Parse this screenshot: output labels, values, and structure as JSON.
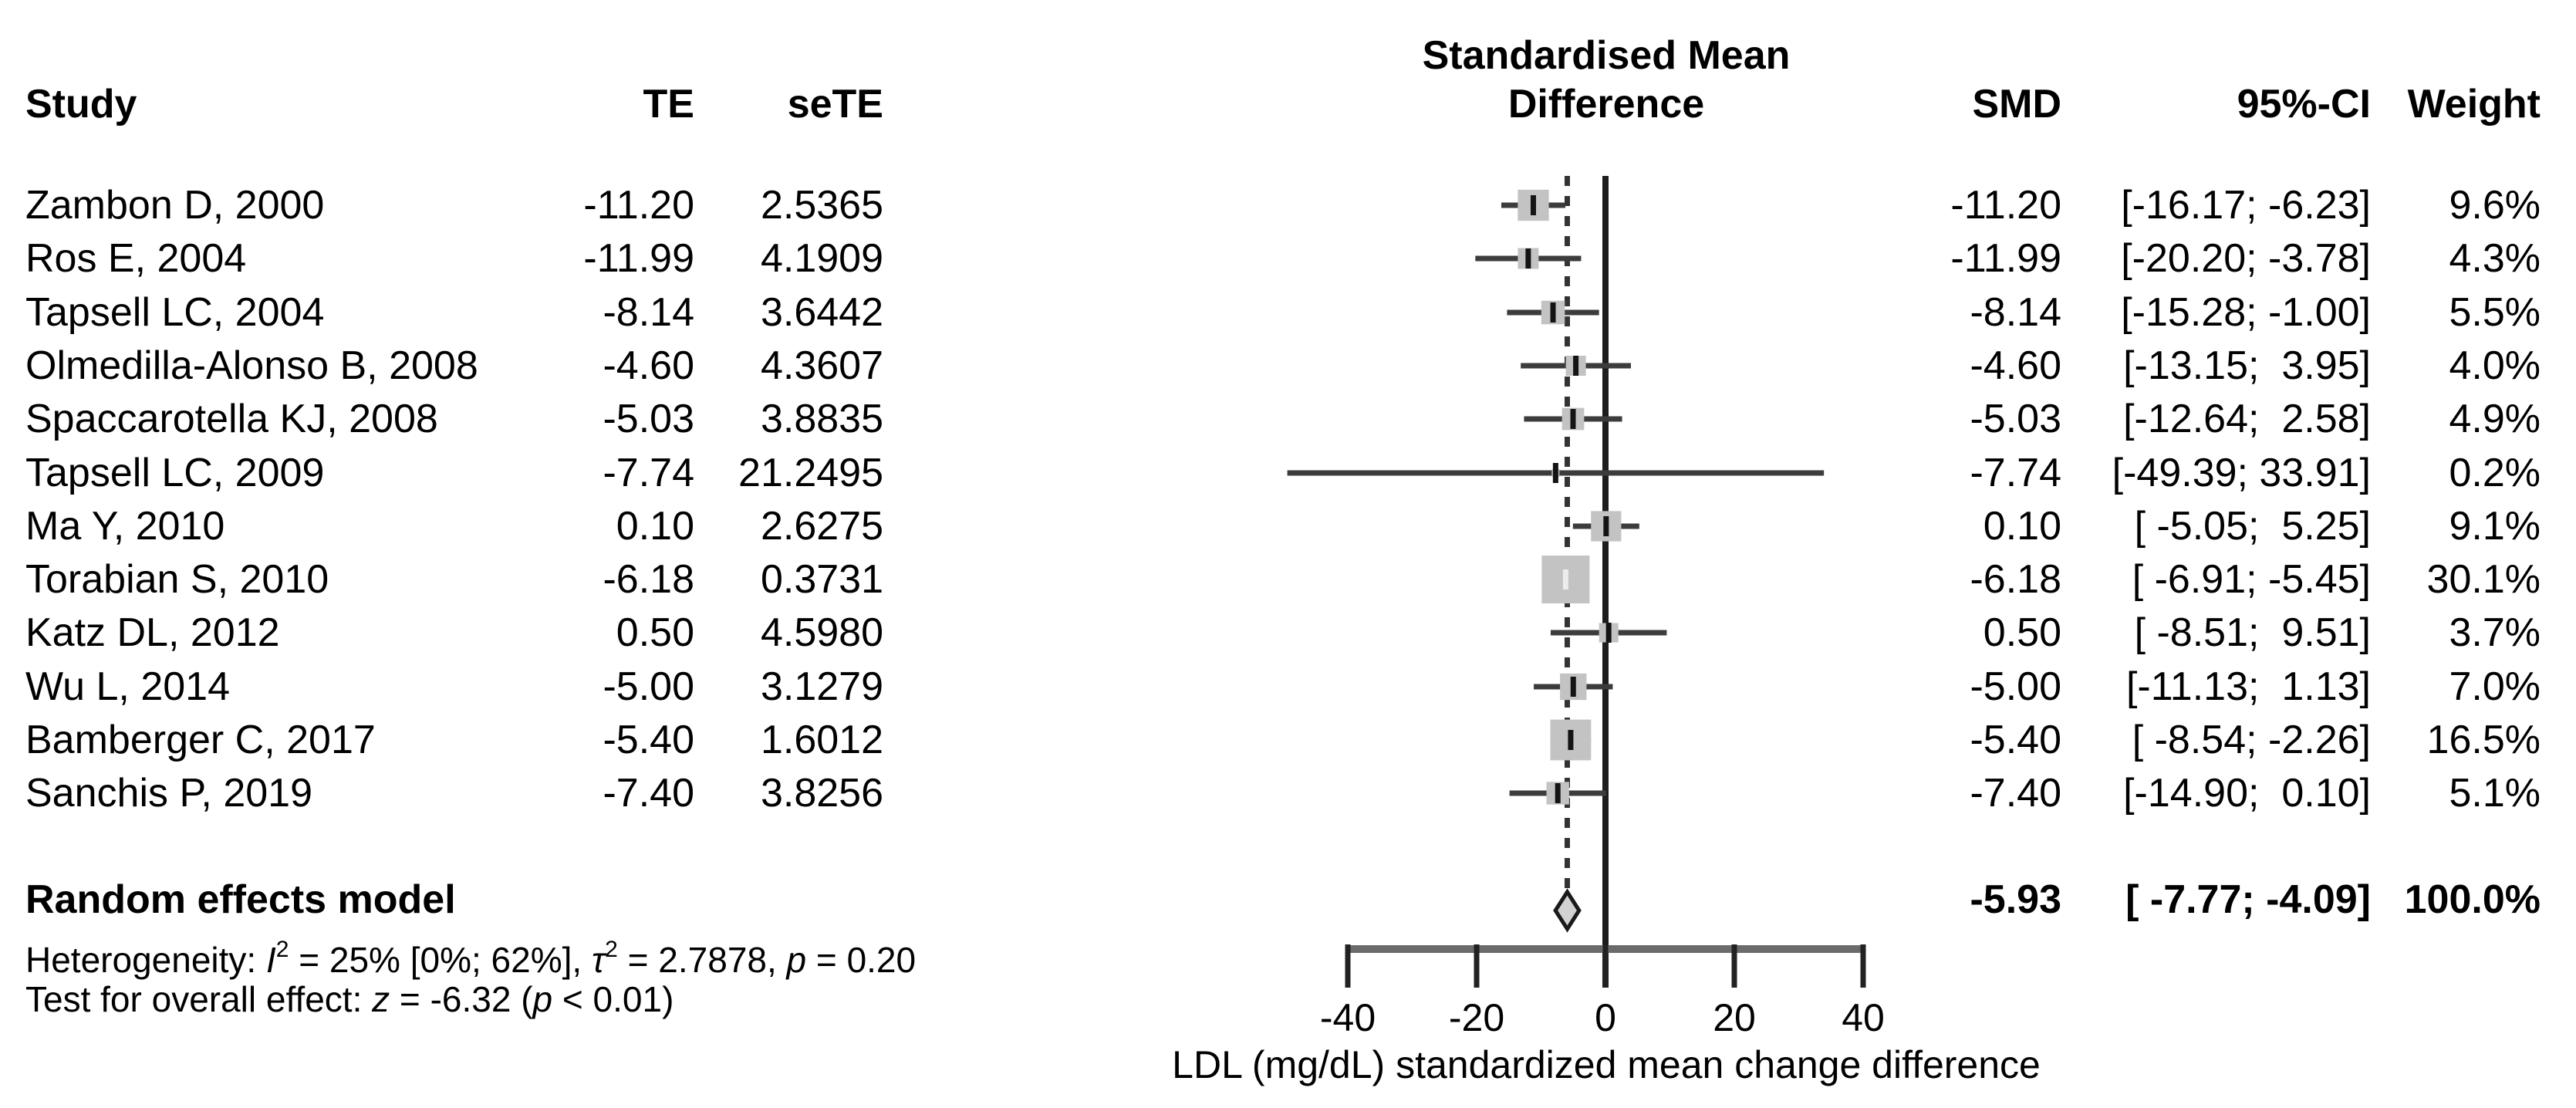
{
  "table": {
    "headers": {
      "study": "Study",
      "te": "TE",
      "sete": "seTE",
      "smd": "SMD",
      "ci": "95%-CI",
      "weight": "Weight"
    }
  },
  "plot": {
    "title_line1": "Standardised Mean",
    "title_line2": "Difference"
  },
  "chart_data": {
    "type": "forest",
    "effect_measure": "SMD",
    "x_axis": {
      "label": "LDL (mg/dL) standardized mean change difference",
      "ticks": [
        -40,
        -20,
        0,
        20,
        40
      ],
      "tick_labels": [
        "-40",
        "-20",
        "0",
        "20",
        "40"
      ],
      "range": [
        -40,
        40
      ]
    },
    "zero_line_x": 0,
    "pooled_line_x": -5.93,
    "studies": [
      {
        "study": "Zambon D, 2000",
        "te": "-11.20",
        "sete": "2.5365",
        "smd": -11.2,
        "ci_lower": -16.17,
        "ci_upper": -6.23,
        "smd_label": "-11.20",
        "ci_label": "[-16.17; -6.23]",
        "weight_pct": 9.6,
        "weight_label": "9.6%"
      },
      {
        "study": "Ros E, 2004",
        "te": "-11.99",
        "sete": "4.1909",
        "smd": -11.99,
        "ci_lower": -20.2,
        "ci_upper": -3.78,
        "smd_label": "-11.99",
        "ci_label": "[-20.20; -3.78]",
        "weight_pct": 4.3,
        "weight_label": "4.3%"
      },
      {
        "study": "Tapsell LC, 2004",
        "te": "-8.14",
        "sete": "3.6442",
        "smd": -8.14,
        "ci_lower": -15.28,
        "ci_upper": -1.0,
        "smd_label": "-8.14",
        "ci_label": "[-15.28; -1.00]",
        "weight_pct": 5.5,
        "weight_label": "5.5%"
      },
      {
        "study": "Olmedilla-Alonso B, 2008",
        "te": "-4.60",
        "sete": "4.3607",
        "smd": -4.6,
        "ci_lower": -13.15,
        "ci_upper": 3.95,
        "smd_label": "-4.60",
        "ci_label": "[-13.15;  3.95]",
        "weight_pct": 4.0,
        "weight_label": "4.0%"
      },
      {
        "study": "Spaccarotella KJ, 2008",
        "te": "-5.03",
        "sete": "3.8835",
        "smd": -5.03,
        "ci_lower": -12.64,
        "ci_upper": 2.58,
        "smd_label": "-5.03",
        "ci_label": "[-12.64;  2.58]",
        "weight_pct": 4.9,
        "weight_label": "4.9%"
      },
      {
        "study": "Tapsell LC, 2009",
        "te": "-7.74",
        "sete": "21.2495",
        "smd": -7.74,
        "ci_lower": -49.39,
        "ci_upper": 33.91,
        "smd_label": "-7.74",
        "ci_label": "[-49.39; 33.91]",
        "weight_pct": 0.2,
        "weight_label": "0.2%"
      },
      {
        "study": "Ma Y, 2010",
        "te": "0.10",
        "sete": "2.6275",
        "smd": 0.1,
        "ci_lower": -5.05,
        "ci_upper": 5.25,
        "smd_label": "0.10",
        "ci_label": "[ -5.05;  5.25]",
        "weight_pct": 9.1,
        "weight_label": "9.1%"
      },
      {
        "study": "Torabian S, 2010",
        "te": "-6.18",
        "sete": "0.3731",
        "smd": -6.18,
        "ci_lower": -6.91,
        "ci_upper": -5.45,
        "smd_label": "-6.18",
        "ci_label": "[ -6.91; -5.45]",
        "weight_pct": 30.1,
        "weight_label": "30.1%"
      },
      {
        "study": "Katz DL, 2012",
        "te": "0.50",
        "sete": "4.5980",
        "smd": 0.5,
        "ci_lower": -8.51,
        "ci_upper": 9.51,
        "smd_label": "0.50",
        "ci_label": "[ -8.51;  9.51]",
        "weight_pct": 3.7,
        "weight_label": "3.7%"
      },
      {
        "study": "Wu L, 2014",
        "te": "-5.00",
        "sete": "3.1279",
        "smd": -5.0,
        "ci_lower": -11.13,
        "ci_upper": 1.13,
        "smd_label": "-5.00",
        "ci_label": "[-11.13;  1.13]",
        "weight_pct": 7.0,
        "weight_label": "7.0%"
      },
      {
        "study": "Bamberger C, 2017",
        "te": "-5.40",
        "sete": "1.6012",
        "smd": -5.4,
        "ci_lower": -8.54,
        "ci_upper": -2.26,
        "smd_label": "-5.40",
        "ci_label": "[ -8.54; -2.26]",
        "weight_pct": 16.5,
        "weight_label": "16.5%"
      },
      {
        "study": "Sanchis P, 2019",
        "te": "-7.40",
        "sete": "3.8256",
        "smd": -7.4,
        "ci_lower": -14.9,
        "ci_upper": 0.1,
        "smd_label": "-7.40",
        "ci_label": "[-14.90;  0.10]",
        "weight_pct": 5.1,
        "weight_label": "5.1%"
      }
    ],
    "pooled": {
      "label": "Random effects model",
      "smd": -5.93,
      "ci_lower": -7.77,
      "ci_upper": -4.09,
      "smd_label": "-5.93",
      "ci_label": "[ -7.77; -4.09]",
      "weight_label": "100.0%"
    }
  },
  "footnotes": {
    "heterogeneity_segments": [
      {
        "t": "Heterogeneity: "
      },
      {
        "t": "I",
        "italic": true
      },
      {
        "t": "2",
        "sup": true
      },
      {
        "t": " = 25% [0%; 62%], "
      },
      {
        "t": "τ",
        "italic": true
      },
      {
        "t": "2",
        "sup": true
      },
      {
        "t": " = 2.7878, "
      },
      {
        "t": "p",
        "italic": true
      },
      {
        "t": " = 0.20"
      }
    ],
    "overall_effect_segments": [
      {
        "t": "Test for overall effect: "
      },
      {
        "t": "z",
        "italic": true
      },
      {
        "t": " = -6.32 ("
      },
      {
        "t": "p",
        "italic": true
      },
      {
        "t": " < 0.01)"
      }
    ]
  },
  "colors": {
    "text": "#000000",
    "ci_line": "#3c3c3c",
    "square_fill": "#c3c3c3",
    "square_tick_dark": "#141414",
    "square_tick_light": "#ededed",
    "zero_line": "#1d1d1d",
    "pooled_dash_line": "#333333",
    "axis_line": "#6b6b6b",
    "axis_tick": "#222222",
    "diamond_fill": "#d2d2d2",
    "diamond_stroke": "#1a1a1a"
  }
}
